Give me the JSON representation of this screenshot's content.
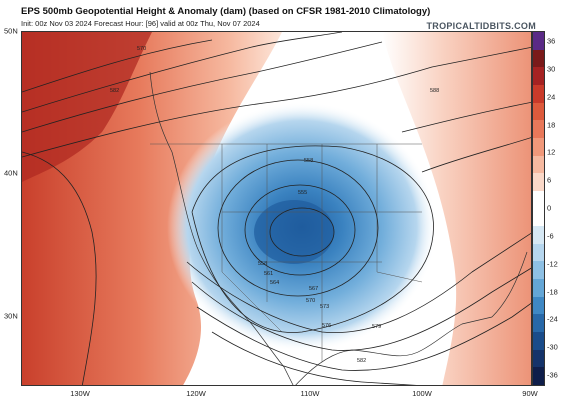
{
  "header": {
    "title": "EPS 500mb Geopotential Height & Anomaly (dam) (based on CFSR 1981-2010 Climatology)",
    "subtitle": "Init: 00z Nov 03 2024   Forecast Hour: [96]   valid at 00z Thu, Nov 07 2024",
    "brand": "TROPICALTIDBITS.COM"
  },
  "map": {
    "lat_labels": [
      "50N",
      "40N",
      "30N"
    ],
    "lon_labels": [
      "130W",
      "120W",
      "110W",
      "100W",
      "90W"
    ],
    "contour_labels": [
      "570",
      "582",
      "558",
      "555",
      "558",
      "561",
      "564",
      "567",
      "570",
      "573",
      "576",
      "579",
      "582",
      "588"
    ]
  },
  "colorbar": {
    "ticks": [
      "36",
      "30",
      "24",
      "18",
      "12",
      "6",
      "0",
      "-6",
      "-12",
      "-18",
      "-24",
      "-30",
      "-36"
    ],
    "colors": [
      "#5a2a86",
      "#7a1a1a",
      "#a52222",
      "#c93a2a",
      "#dd5a3c",
      "#e8785a",
      "#f0987a",
      "#f6b9a0",
      "#fad8c8",
      "#ffffff",
      "#ffffff",
      "#d6e8f4",
      "#b6d6ee",
      "#8ec0e4",
      "#64a6d6",
      "#3f88c4",
      "#2868a8",
      "#1a4c8a",
      "#15336a",
      "#0f1e4a"
    ]
  }
}
